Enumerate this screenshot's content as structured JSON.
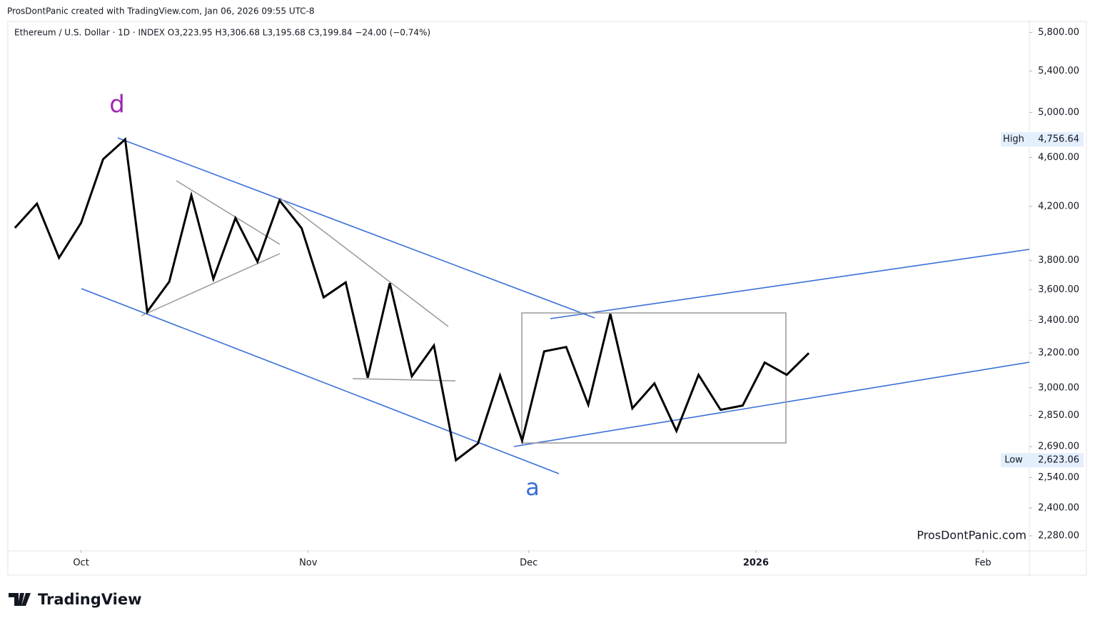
{
  "credit": "ProsDontPanic created with TradingView.com, Jan 06, 2026 09:55 UTC-8",
  "brand": "TradingView",
  "chart_data": {
    "type": "line",
    "title": "Ethereum / U.S. Dollar · 1D · INDEX  O3,223.95  H3,306.68  L3,195.68  C3,199.84  −24.00 (−0.74%)",
    "watermark": "ProsDontPanic.com",
    "color": "#000000",
    "log_scale": true,
    "categories": [
      null,
      null,
      null,
      null,
      null,
      null,
      null,
      null,
      null,
      null,
      null,
      null,
      null,
      null,
      null,
      null,
      null,
      null,
      null,
      null,
      null,
      null,
      null,
      null,
      null,
      null,
      null,
      null,
      null,
      null,
      null,
      null,
      null,
      null,
      null,
      null,
      null
    ],
    "values": [
      4036,
      4222,
      3818,
      4074,
      4585,
      4757,
      3455,
      3653,
      4287,
      3672,
      4110,
      3791,
      4247,
      4034,
      3548,
      3648,
      3057,
      3643,
      3065,
      3245,
      2623,
      2706,
      3069,
      2720,
      3210,
      3236,
      2907,
      3441,
      2888,
      3025,
      2769,
      3073,
      2880,
      2903,
      3144,
      3073,
      3200
    ],
    "xlim": [
      -0.32,
      46
    ],
    "xticks": [
      {
        "value": 3,
        "label": "Oct"
      },
      {
        "value": 13.3,
        "label": "Nov"
      },
      {
        "value": 23.3,
        "label": "Dec"
      },
      {
        "value": 33.6,
        "label": "2026"
      },
      {
        "value": 43.9,
        "label": "Feb"
      }
    ],
    "ylim": [
      2220,
      5920
    ],
    "yticks": [
      {
        "value": 5800,
        "label": "5,800.00"
      },
      {
        "value": 5400,
        "label": "5,400.00"
      },
      {
        "value": 5000,
        "label": "5,000.00"
      },
      {
        "value": 4600,
        "label": "4,600.00"
      },
      {
        "value": 4200,
        "label": "4,200.00"
      },
      {
        "value": 3800,
        "label": "3,800.00"
      },
      {
        "value": 3600,
        "label": "3,600.00"
      },
      {
        "value": 3400,
        "label": "3,400.00"
      },
      {
        "value": 3200,
        "label": "3,200.00"
      },
      {
        "value": 3000,
        "label": "3,000.00"
      },
      {
        "value": 2850,
        "label": "2,850.00"
      },
      {
        "value": 2690,
        "label": "2,690.00"
      },
      {
        "value": 2540,
        "label": "2,540.00"
      },
      {
        "value": 2400,
        "label": "2,400.00"
      },
      {
        "value": 2280,
        "label": "2,280.00"
      }
    ],
    "high_label": "High",
    "high": {
      "value": 4756.64,
      "label": "4,756.64"
    },
    "low_label": "Low",
    "low": {
      "value": 2623.06,
      "label": "2,623.06"
    },
    "annotations": [
      "d",
      "a"
    ]
  }
}
